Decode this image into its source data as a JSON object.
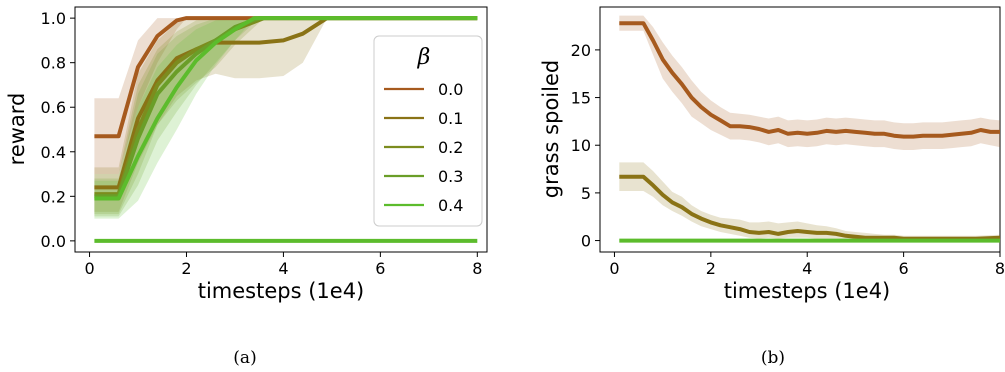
{
  "chart_data": [
    {
      "type": "line",
      "panel_caption": "(a)",
      "xlabel": "timesteps (1e4)",
      "ylabel": "reward",
      "xlim": [
        -0.3,
        8.2
      ],
      "ylim": [
        -0.05,
        1.05
      ],
      "xticks": [
        0,
        2,
        4,
        6,
        8
      ],
      "yticks": [
        0.0,
        0.2,
        0.4,
        0.6,
        0.8,
        1.0
      ],
      "ytick_labels": [
        "0.0",
        "0.2",
        "0.4",
        "0.6",
        "0.8",
        "1.0"
      ],
      "legend": {
        "title": "β",
        "placement": "right"
      },
      "series": [
        {
          "name": "0.0",
          "color": "#a65a1e",
          "x": [
            0.1,
            0.6,
            1.0,
            1.4,
            1.8,
            2.0,
            2.4,
            8.0
          ],
          "y": [
            0.47,
            0.47,
            0.78,
            0.92,
            0.99,
            1.0,
            1.0,
            1.0
          ],
          "band_lo": [
            0.3,
            0.3,
            0.6,
            0.8,
            0.95,
            1.0,
            1.0,
            1.0
          ],
          "band_hi": [
            0.64,
            0.64,
            0.9,
            1.0,
            1.0,
            1.0,
            1.0,
            1.0
          ]
        },
        {
          "name": "0.1",
          "color": "#8a7316",
          "x": [
            0.1,
            0.6,
            1.0,
            1.4,
            1.8,
            2.2,
            2.6,
            3.0,
            3.5,
            4.0,
            4.4,
            4.9,
            8.0
          ],
          "y": [
            0.24,
            0.24,
            0.55,
            0.72,
            0.82,
            0.86,
            0.89,
            0.89,
            0.89,
            0.9,
            0.93,
            1.0,
            1.0
          ],
          "band_lo": [
            0.13,
            0.13,
            0.35,
            0.52,
            0.65,
            0.72,
            0.75,
            0.73,
            0.73,
            0.74,
            0.8,
            1.0,
            1.0
          ],
          "band_hi": [
            0.33,
            0.33,
            0.75,
            0.9,
            0.98,
            1.0,
            1.0,
            1.0,
            1.0,
            1.0,
            1.0,
            1.0,
            1.0
          ]
        },
        {
          "name": "0.2",
          "color": "#7c8c1e",
          "x": [
            0.1,
            0.6,
            1.0,
            1.4,
            1.8,
            2.2,
            2.6,
            3.0,
            3.6,
            8.0
          ],
          "y": [
            0.21,
            0.21,
            0.5,
            0.7,
            0.8,
            0.86,
            0.9,
            0.95,
            1.0,
            1.0
          ],
          "band_lo": [
            0.12,
            0.12,
            0.3,
            0.52,
            0.63,
            0.71,
            0.78,
            0.88,
            1.0,
            1.0
          ],
          "band_hi": [
            0.3,
            0.3,
            0.7,
            0.86,
            0.94,
            0.99,
            1.0,
            1.0,
            1.0,
            1.0
          ]
        },
        {
          "name": "0.3",
          "color": "#6a9e28",
          "x": [
            0.1,
            0.6,
            1.0,
            1.4,
            1.8,
            2.2,
            2.6,
            3.0,
            3.5,
            8.0
          ],
          "y": [
            0.2,
            0.2,
            0.46,
            0.66,
            0.76,
            0.84,
            0.9,
            0.96,
            1.0,
            1.0
          ],
          "band_lo": [
            0.11,
            0.11,
            0.25,
            0.45,
            0.58,
            0.7,
            0.8,
            0.9,
            1.0,
            1.0
          ],
          "band_hi": [
            0.28,
            0.28,
            0.66,
            0.84,
            0.92,
            0.97,
            1.0,
            1.0,
            1.0,
            1.0
          ]
        },
        {
          "name": "0.4",
          "color": "#5cbc2c",
          "x": [
            0.1,
            0.6,
            1.0,
            1.4,
            1.8,
            2.2,
            2.6,
            3.0,
            3.4,
            8.0
          ],
          "y": [
            0.19,
            0.19,
            0.38,
            0.55,
            0.69,
            0.81,
            0.89,
            0.95,
            1.0,
            1.0
          ],
          "band_lo": [
            0.1,
            0.1,
            0.18,
            0.35,
            0.5,
            0.66,
            0.79,
            0.9,
            1.0,
            1.0
          ],
          "band_hi": [
            0.27,
            0.27,
            0.6,
            0.78,
            0.88,
            0.95,
            0.99,
            1.0,
            1.0,
            1.0
          ]
        },
        {
          "name": "",
          "color": "#5cbc2c",
          "legend": false,
          "x": [
            0.1,
            8.0
          ],
          "y": [
            0.0,
            0.0
          ]
        }
      ]
    },
    {
      "type": "line",
      "panel_caption": "(b)",
      "xlabel": "timesteps (1e4)",
      "ylabel": "grass spoiled",
      "xlim": [
        -0.3,
        8.0
      ],
      "ylim": [
        -1.2,
        24.5
      ],
      "xticks": [
        0,
        2,
        4,
        6,
        8
      ],
      "yticks": [
        0,
        5,
        10,
        15,
        20
      ],
      "ytick_labels": [
        "0",
        "5",
        "10",
        "15",
        "20"
      ],
      "series": [
        {
          "name": "",
          "color": "#a65a1e",
          "x": [
            0.1,
            0.6,
            0.8,
            1.0,
            1.2,
            1.4,
            1.6,
            1.8,
            2.0,
            2.2,
            2.4,
            2.6,
            2.8,
            3.0,
            3.2,
            3.4,
            3.6,
            3.8,
            4.0,
            4.2,
            4.4,
            4.6,
            4.8,
            5.0,
            5.2,
            5.4,
            5.6,
            5.8,
            6.0,
            6.2,
            6.4,
            6.6,
            6.8,
            7.0,
            7.2,
            7.4,
            7.6,
            7.8,
            8.0
          ],
          "y": [
            22.8,
            22.8,
            21.0,
            19.0,
            17.6,
            16.4,
            15.0,
            14.0,
            13.2,
            12.6,
            12.0,
            12.0,
            11.9,
            11.7,
            11.4,
            11.6,
            11.2,
            11.3,
            11.2,
            11.3,
            11.5,
            11.4,
            11.5,
            11.4,
            11.3,
            11.2,
            11.2,
            11.0,
            10.9,
            10.9,
            11.0,
            11.0,
            11.0,
            11.1,
            11.2,
            11.3,
            11.6,
            11.4,
            11.4
          ],
          "band_lo": [
            22.0,
            22.0,
            19.5,
            17.0,
            15.6,
            14.4,
            13.0,
            12.3,
            11.6,
            11.1,
            10.6,
            10.6,
            10.5,
            10.3,
            10.0,
            10.2,
            9.8,
            9.9,
            9.8,
            9.9,
            10.1,
            10.0,
            10.1,
            10.0,
            9.9,
            9.8,
            9.8,
            9.6,
            9.5,
            9.5,
            9.6,
            9.6,
            9.6,
            9.7,
            9.8,
            9.9,
            10.2,
            10.0,
            9.8
          ],
          "band_hi": [
            23.6,
            23.6,
            22.4,
            20.8,
            19.4,
            18.2,
            16.8,
            15.6,
            14.7,
            14.0,
            13.4,
            13.3,
            13.2,
            13.0,
            12.8,
            13.0,
            12.6,
            12.7,
            12.6,
            12.7,
            12.9,
            12.8,
            12.9,
            12.8,
            12.7,
            12.6,
            12.6,
            12.4,
            12.3,
            12.3,
            12.4,
            12.4,
            12.4,
            12.5,
            12.6,
            12.7,
            12.9,
            12.7,
            12.6
          ]
        },
        {
          "name": "",
          "color": "#8a7316",
          "x": [
            0.1,
            0.6,
            0.8,
            1.0,
            1.2,
            1.4,
            1.6,
            1.8,
            2.0,
            2.2,
            2.4,
            2.6,
            2.8,
            3.0,
            3.2,
            3.4,
            3.6,
            3.8,
            4.0,
            4.2,
            4.4,
            4.6,
            4.8,
            5.0,
            5.2,
            5.4,
            5.6,
            5.8,
            6.0,
            6.5,
            7.0,
            7.5,
            8.0
          ],
          "y": [
            6.7,
            6.7,
            5.8,
            4.8,
            4.0,
            3.5,
            2.8,
            2.3,
            1.9,
            1.6,
            1.4,
            1.2,
            0.9,
            0.8,
            0.9,
            0.7,
            0.9,
            1.0,
            0.9,
            0.8,
            0.8,
            0.7,
            0.5,
            0.4,
            0.3,
            0.3,
            0.3,
            0.3,
            0.2,
            0.2,
            0.2,
            0.2,
            0.3
          ],
          "band_lo": [
            5.2,
            5.2,
            4.6,
            3.7,
            3.1,
            2.6,
            2.0,
            1.5,
            1.2,
            0.9,
            0.7,
            0.5,
            0.3,
            0.2,
            0.3,
            0.2,
            0.3,
            0.3,
            0.3,
            0.2,
            0.2,
            0.2,
            0.1,
            0.1,
            0.0,
            0.0,
            0.0,
            0.0,
            0.0,
            0.0,
            0.0,
            0.0,
            0.0
          ],
          "band_hi": [
            8.2,
            8.2,
            7.3,
            6.2,
            5.1,
            4.6,
            3.7,
            3.1,
            2.7,
            2.4,
            2.3,
            2.2,
            1.9,
            1.9,
            2.0,
            1.8,
            1.9,
            2.0,
            1.8,
            1.6,
            1.5,
            1.3,
            1.0,
            0.9,
            0.8,
            0.7,
            0.6,
            0.6,
            0.5,
            0.5,
            0.5,
            0.5,
            0.6
          ]
        },
        {
          "name": "",
          "color": "#5cbc2c",
          "x": [
            0.1,
            8.0
          ],
          "y": [
            0.0,
            0.0
          ]
        }
      ]
    }
  ]
}
